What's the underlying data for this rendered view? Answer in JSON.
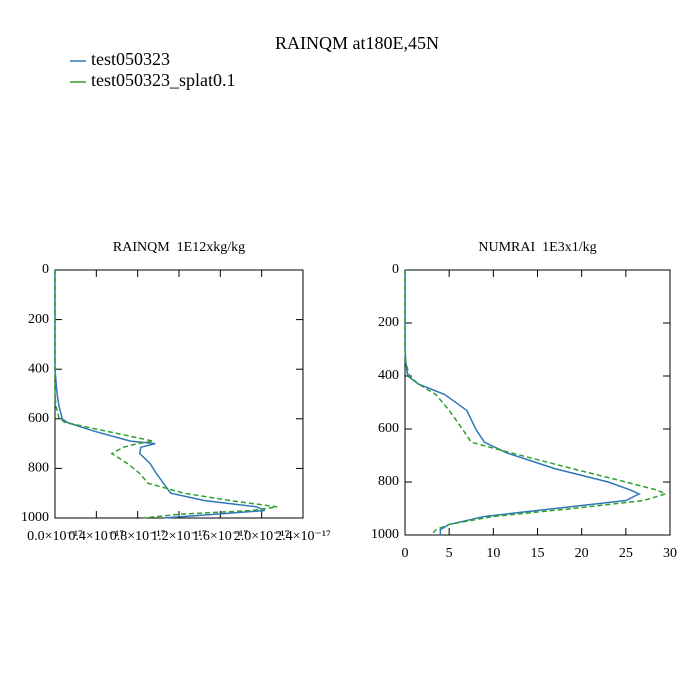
{
  "title": "RAINQM at180E,45N",
  "chart_data": [
    {
      "type": "line",
      "title": "RAINQM  1E12xkg/kg",
      "y": [
        0,
        100,
        200,
        300,
        400,
        450,
        500,
        550,
        600,
        615,
        650,
        690,
        700,
        715,
        740,
        780,
        820,
        860,
        900,
        930,
        955,
        970,
        985,
        1000
      ],
      "series": [
        {
          "name": "test050323",
          "color": "#2f77b8",
          "style": "solid",
          "values": [
            0,
            0,
            0,
            0,
            0,
            1e-19,
            2e-19,
            4e-19,
            7e-19,
            1.2e-18,
            3.8e-18,
            7.3e-18,
            9.7e-18,
            8.3e-18,
            8.2e-18,
            9.2e-18,
            9.8e-18,
            1.05e-17,
            1.12e-17,
            1.45e-17,
            1.95e-17,
            2.03e-17,
            1.55e-17,
            1.05e-17
          ]
        },
        {
          "name": "test050323_splat0.1",
          "color": "#2ca02c",
          "style": "dashed",
          "values": [
            0,
            0,
            0,
            0,
            0,
            0,
            0,
            1e-19,
            4e-19,
            1e-18,
            5e-18,
            9.5e-18,
            8e-18,
            6.6e-18,
            5.5e-18,
            7e-18,
            8.2e-18,
            9e-18,
            1.25e-17,
            1.7e-17,
            2.15e-17,
            1.9e-17,
            1.2e-17,
            8.5e-18
          ]
        }
      ],
      "xlim": [
        0,
        2.4e-17
      ],
      "xticks": [
        {
          "value": 0,
          "label": "0.0×10⁻¹⁷"
        },
        {
          "value": 4e-18,
          "label": "0.4×10⁻¹⁷"
        },
        {
          "value": 8e-18,
          "label": "0.8×10⁻¹⁷"
        },
        {
          "value": 1.2e-17,
          "label": "1.2×10⁻¹⁷"
        },
        {
          "value": 1.6e-17,
          "label": "1.6×10⁻¹⁷"
        },
        {
          "value": 2e-17,
          "label": "2.0×10⁻¹⁷"
        },
        {
          "value": 2.4e-17,
          "label": "2.4×10⁻¹⁷"
        }
      ],
      "ylim": [
        0,
        1000
      ],
      "yticks": [
        0,
        200,
        400,
        600,
        800,
        1000
      ],
      "y_inverted": true
    },
    {
      "type": "line",
      "title": "NUMRAI  1E3x1/kg",
      "y": [
        0,
        100,
        200,
        300,
        350,
        400,
        430,
        470,
        530,
        600,
        650,
        690,
        750,
        800,
        830,
        845,
        870,
        900,
        930,
        960,
        980,
        1000
      ],
      "series": [
        {
          "name": "test050323",
          "color": "#2f77b8",
          "style": "solid",
          "values": [
            0,
            0,
            0,
            0,
            0.1,
            0.3,
            1.5,
            4.5,
            7.0,
            8.0,
            9.0,
            11.5,
            17,
            23,
            25.5,
            26.5,
            25,
            17,
            9,
            5,
            4,
            4
          ]
        },
        {
          "name": "test050323_splat0.1",
          "color": "#2ca02c",
          "style": "dashed",
          "values": [
            0,
            0,
            0,
            0,
            0.1,
            0.5,
            1.5,
            3.5,
            5.0,
            6.5,
            7.5,
            12,
            19,
            25,
            28.5,
            29.5,
            27,
            19,
            10,
            5,
            3.5,
            3
          ]
        }
      ],
      "xlim": [
        0,
        30
      ],
      "xticks": [
        0,
        5,
        10,
        15,
        20,
        25,
        30
      ],
      "ylim": [
        0,
        1000
      ],
      "yticks": [
        0,
        200,
        400,
        600,
        800,
        1000
      ],
      "y_inverted": true
    }
  ]
}
